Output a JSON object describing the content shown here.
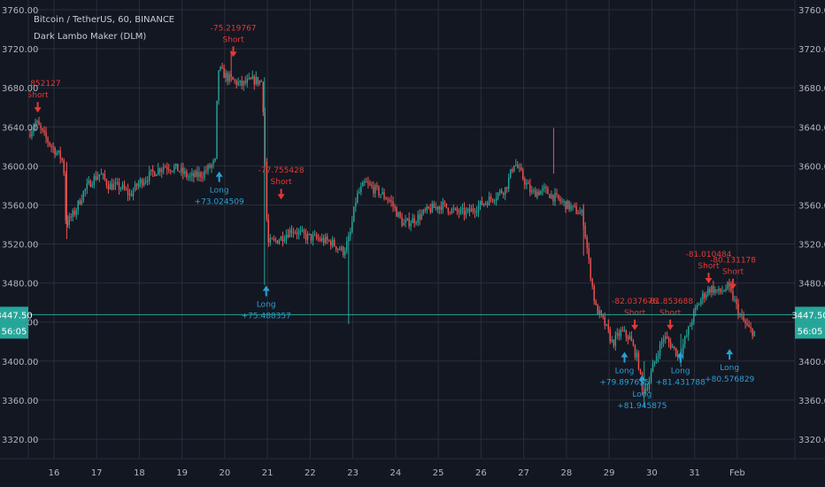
{
  "header": {
    "symbol_line": "Bitcoin / TetherUS, 60, BINANCE",
    "indicator_line": "Dark Lambo Maker (DLM)"
  },
  "price_marker": {
    "price_label": "3447.50",
    "countdown_label": "56:05",
    "color": "#26a69a"
  },
  "colors": {
    "background": "#131722",
    "grid": "#2a2e39",
    "up": "#26a69a",
    "down": "#ef5350",
    "long_signal": "#2a9fd6",
    "short_signal": "#e53935",
    "axis_text": "#b2b5be"
  },
  "chart_data": {
    "type": "candlestick",
    "title": "Bitcoin / TetherUS, 60, BINANCE",
    "indicator": "Dark Lambo Maker (DLM)",
    "ylim": [
      3300,
      3770
    ],
    "xlim": [
      15.4,
      33.35
    ],
    "y_ticks": [
      3320,
      3360,
      3400,
      3440,
      3480,
      3520,
      3560,
      3600,
      3640,
      3680,
      3720,
      3760
    ],
    "y_tick_labels": [
      "3320.00",
      "3360.00",
      "3400.00",
      "3440.00",
      "3480.00",
      "3520.00",
      "3560.00",
      "3600.00",
      "3640.00",
      "3680.00",
      "3720.00",
      "3760.00"
    ],
    "x_ticks": [
      {
        "t": 16,
        "label": "16"
      },
      {
        "t": 17,
        "label": "17"
      },
      {
        "t": 18,
        "label": "18"
      },
      {
        "t": 19,
        "label": "19"
      },
      {
        "t": 20,
        "label": "20"
      },
      {
        "t": 21,
        "label": "21"
      },
      {
        "t": 22,
        "label": "22"
      },
      {
        "t": 23,
        "label": "23"
      },
      {
        "t": 24,
        "label": "24"
      },
      {
        "t": 25,
        "label": "25"
      },
      {
        "t": 26,
        "label": "26"
      },
      {
        "t": 27,
        "label": "27"
      },
      {
        "t": 28,
        "label": "28"
      },
      {
        "t": 29,
        "label": "29"
      },
      {
        "t": 30,
        "label": "30"
      },
      {
        "t": 31,
        "label": "31"
      },
      {
        "t": 32,
        "label": "Feb"
      }
    ],
    "grid": true,
    "current_price": 3447.5,
    "price_path": [
      [
        15.42,
        3632
      ],
      [
        15.6,
        3645
      ],
      [
        15.8,
        3630
      ],
      [
        16.0,
        3618
      ],
      [
        16.2,
        3608
      ],
      [
        16.25,
        3598
      ],
      [
        16.3,
        3540
      ],
      [
        16.5,
        3552
      ],
      [
        16.7,
        3572
      ],
      [
        16.9,
        3585
      ],
      [
        17.1,
        3592
      ],
      [
        17.3,
        3580
      ],
      [
        17.6,
        3578
      ],
      [
        17.8,
        3570
      ],
      [
        18.0,
        3582
      ],
      [
        18.3,
        3592
      ],
      [
        18.6,
        3600
      ],
      [
        18.9,
        3597
      ],
      [
        19.2,
        3588
      ],
      [
        19.5,
        3592
      ],
      [
        19.8,
        3604
      ],
      [
        19.86,
        3700
      ],
      [
        20.1,
        3690
      ],
      [
        20.4,
        3683
      ],
      [
        20.7,
        3688
      ],
      [
        20.9,
        3686
      ],
      [
        20.98,
        3580
      ],
      [
        21.02,
        3520
      ],
      [
        21.3,
        3525
      ],
      [
        21.6,
        3535
      ],
      [
        21.9,
        3528
      ],
      [
        22.2,
        3525
      ],
      [
        22.5,
        3522
      ],
      [
        22.8,
        3512
      ],
      [
        22.95,
        3528
      ],
      [
        23.1,
        3568
      ],
      [
        23.3,
        3582
      ],
      [
        23.6,
        3574
      ],
      [
        23.9,
        3564
      ],
      [
        24.2,
        3540
      ],
      [
        24.5,
        3546
      ],
      [
        24.8,
        3555
      ],
      [
        25.1,
        3560
      ],
      [
        25.4,
        3553
      ],
      [
        25.7,
        3552
      ],
      [
        26.0,
        3560
      ],
      [
        26.3,
        3568
      ],
      [
        26.6,
        3577
      ],
      [
        26.8,
        3604
      ],
      [
        26.95,
        3592
      ],
      [
        27.2,
        3572
      ],
      [
        27.5,
        3575
      ],
      [
        27.8,
        3566
      ],
      [
        28.1,
        3558
      ],
      [
        28.4,
        3550
      ],
      [
        28.55,
        3500
      ],
      [
        28.7,
        3455
      ],
      [
        28.9,
        3440
      ],
      [
        29.1,
        3418
      ],
      [
        29.3,
        3430
      ],
      [
        29.5,
        3424
      ],
      [
        29.7,
        3400
      ],
      [
        29.8,
        3368
      ],
      [
        29.95,
        3378
      ],
      [
        30.1,
        3402
      ],
      [
        30.3,
        3425
      ],
      [
        30.5,
        3415
      ],
      [
        30.65,
        3405
      ],
      [
        30.85,
        3428
      ],
      [
        31.0,
        3448
      ],
      [
        31.2,
        3466
      ],
      [
        31.4,
        3475
      ],
      [
        31.6,
        3470
      ],
      [
        31.8,
        3476
      ],
      [
        31.95,
        3462
      ],
      [
        32.1,
        3445
      ],
      [
        32.3,
        3432
      ],
      [
        32.4,
        3430
      ]
    ],
    "spikes": [
      {
        "t": 27.7,
        "high": 3639,
        "low": 3592
      },
      {
        "t": 20.15,
        "high": 3718,
        "low": 3686
      },
      {
        "t": 20.93,
        "high": 3691,
        "low": 3478
      },
      {
        "t": 22.9,
        "high": 3526,
        "low": 3438
      },
      {
        "t": 16.3,
        "high": 3604,
        "low": 3525
      },
      {
        "t": 29.82,
        "high": 3400,
        "low": 3353
      },
      {
        "t": 30.68,
        "high": 3428,
        "low": 3394
      },
      {
        "t": 28.4,
        "high": 3561,
        "low": 3508
      }
    ],
    "signals": [
      {
        "type": "short",
        "t": 15.62,
        "price": 3651,
        "value": "-72.852127",
        "label": "Short"
      },
      {
        "type": "short",
        "t": 20.2,
        "price": 3708,
        "value": "-75.219767",
        "label": "Short"
      },
      {
        "type": "long",
        "t": 19.87,
        "price": 3598,
        "value": "+73.024509",
        "label": "Long"
      },
      {
        "type": "short",
        "t": 21.32,
        "price": 3562,
        "value": "-77.755428",
        "label": "Short"
      },
      {
        "type": "long",
        "t": 20.97,
        "price": 3481,
        "value": "+75.488357",
        "label": "Long"
      },
      {
        "type": "short",
        "t": 29.6,
        "price": 3428,
        "value": "-82.037676",
        "label": "Short"
      },
      {
        "type": "long",
        "t": 29.36,
        "price": 3413,
        "value": "+79.897655",
        "label": "Long"
      },
      {
        "type": "long",
        "t": 29.77,
        "price": 3389,
        "value": "+81.945875",
        "label": "Long"
      },
      {
        "type": "short",
        "t": 30.43,
        "price": 3428,
        "value": "-81.853688",
        "label": "Short"
      },
      {
        "type": "long",
        "t": 30.67,
        "price": 3413,
        "value": "+81.431788",
        "label": "Long"
      },
      {
        "type": "short",
        "t": 31.33,
        "price": 3476,
        "value": "-81.010484",
        "label": "Short"
      },
      {
        "type": "short",
        "t": 31.9,
        "price": 3470,
        "value": "-80.131178",
        "label": "Short"
      },
      {
        "type": "long",
        "t": 31.82,
        "price": 3416,
        "value": "+80.576829",
        "label": "Long"
      }
    ]
  }
}
